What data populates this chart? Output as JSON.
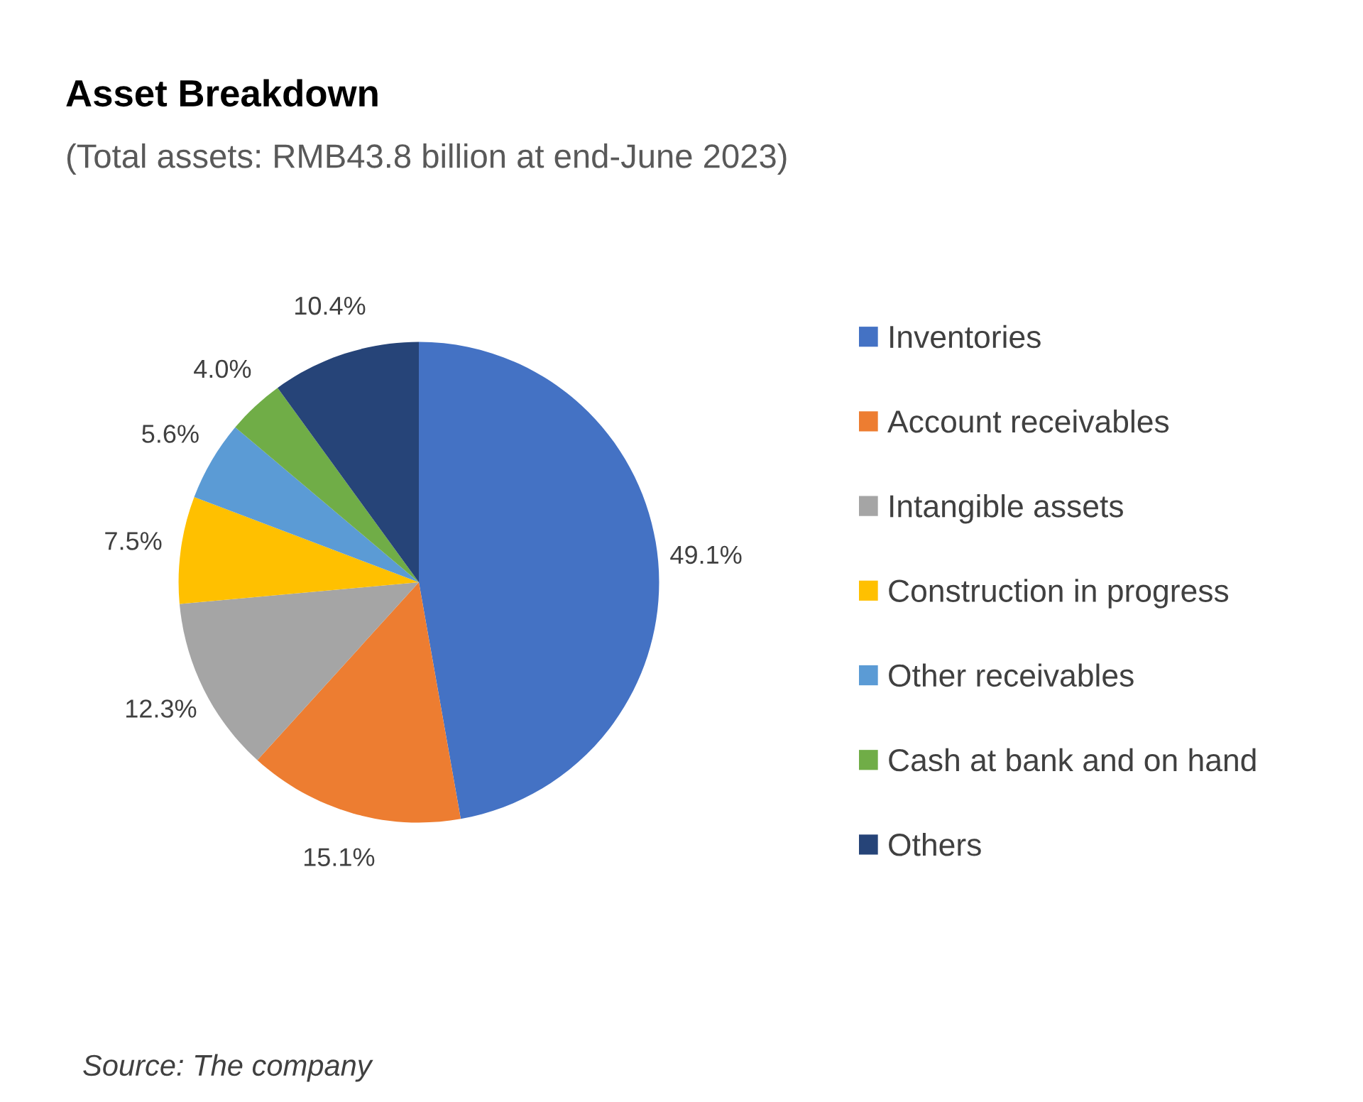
{
  "chart_data": {
    "type": "pie",
    "title": "Asset Breakdown",
    "subtitle": "(Total assets: RMB43.8 billion at end-June 2023)",
    "categories": [
      "Inventories",
      "Account receivables",
      "Intangible assets",
      "Construction in progress",
      "Other receivables",
      "Cash at bank and on hand",
      "Others"
    ],
    "values": [
      49.1,
      15.1,
      12.3,
      7.5,
      5.6,
      4.0,
      10.4
    ],
    "colors": [
      "#4472c4",
      "#ed7d31",
      "#a5a5a5",
      "#ffc000",
      "#5b9bd5",
      "#70ad47",
      "#264478"
    ],
    "value_labels": [
      "49.1%",
      "15.1%",
      "12.3%",
      "7.5%",
      "5.6%",
      "4.0%",
      "10.4%"
    ],
    "legend": "right",
    "annotations": [
      "Source: The company"
    ]
  }
}
